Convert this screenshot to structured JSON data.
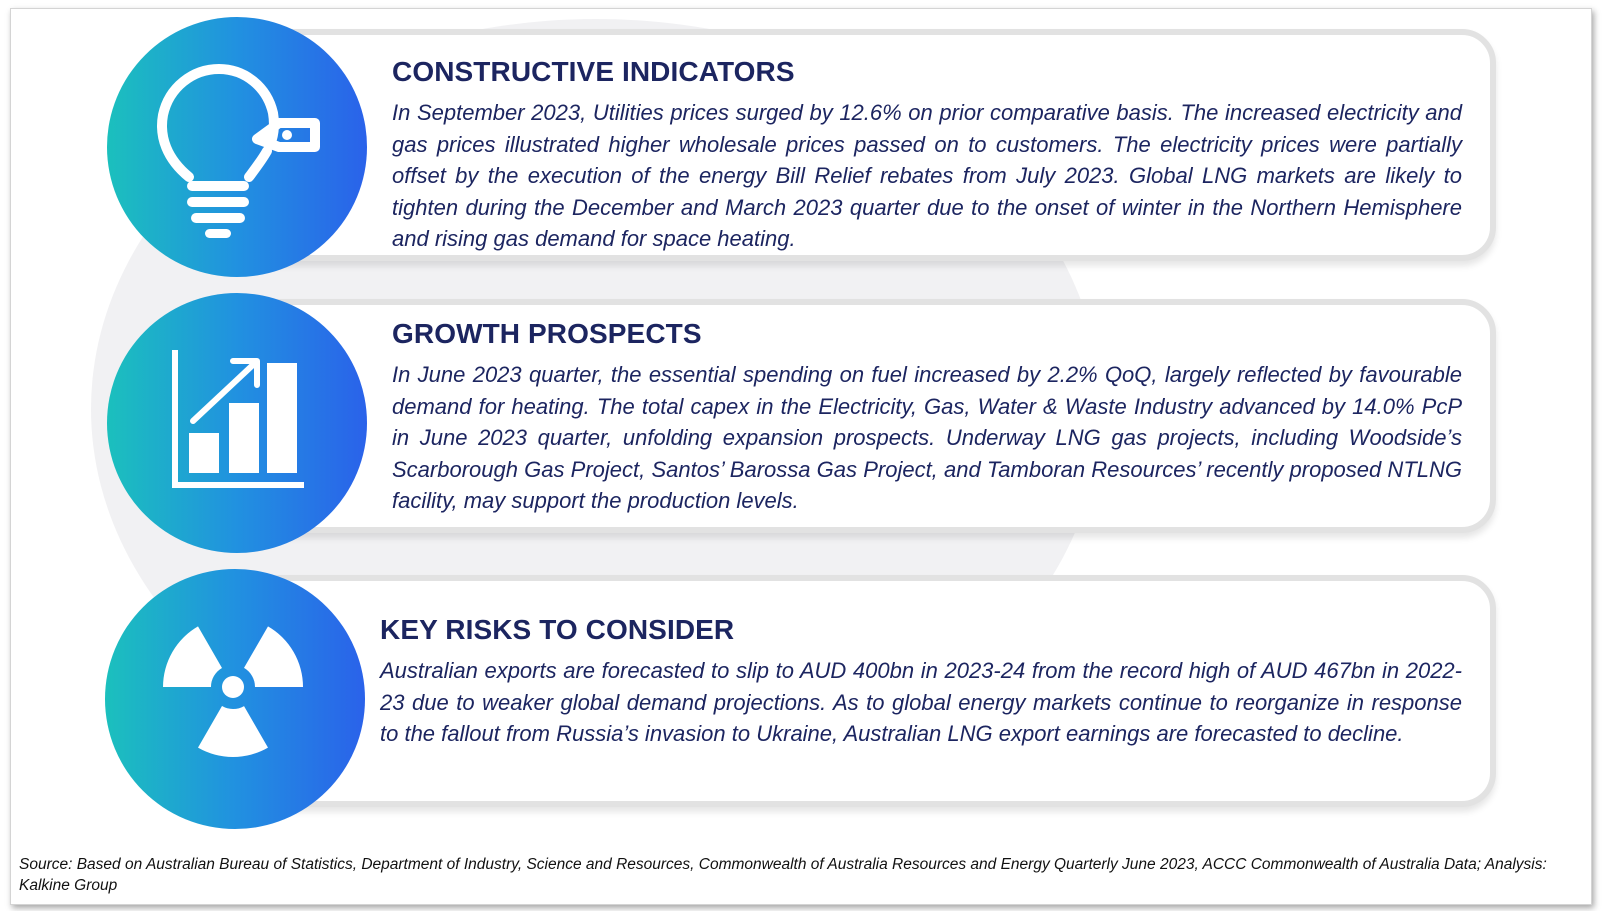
{
  "sections": [
    {
      "title": "CONSTRUCTIVE INDICATORS",
      "body": "In September 2023, Utilities prices surged by 12.6% on prior comparative basis. The increased electricity and gas prices illustrated higher wholesale prices passed on to customers. The electricity prices were partially offset by the execution of the energy Bill Relief rebates from July 2023. Global LNG markets are likely to tighten during the December and March 2023 quarter due to the onset of winter in the Northern Hemisphere and rising gas demand for space heating.",
      "icon": "lightbulb-price-tag-icon"
    },
    {
      "title": "GROWTH PROSPECTS",
      "body": "In June 2023 quarter, the essential spending on fuel increased by 2.2% QoQ, largely reflected by favourable demand for heating. The total capex in the Electricity, Gas, Water & Waste Industry advanced by 14.0% PcP in June 2023 quarter, unfolding expansion prospects. Underway LNG gas projects, including Woodside’s Scarborough Gas Project, Santos’ Barossa Gas Project, and Tamboran Resources’ recently proposed NTLNG facility, may support the production levels.",
      "icon": "growth-bar-chart-icon"
    },
    {
      "title": "KEY RISKS TO CONSIDER",
      "body": "Australian exports are forecasted to slip to AUD 400bn in 2023-24 from the record high of AUD 467bn in 2022-23 due to weaker global demand projections. As to global energy markets continue to reorganize in response to the fallout from Russia’s invasion to Ukraine, Australian LNG export earnings are forecasted to decline.",
      "icon": "radiation-hazard-icon"
    }
  ],
  "source": "Source: Based on Australian Bureau of Statistics, Department of Industry, Science and Resources, Commonwealth of Australia Resources and Energy Quarterly June 2023, ACCC Commonwealth of Australia Data; Analysis: Kalkine Group",
  "colors": {
    "title": "#1c2560",
    "gradient_start": "#1bc0bd",
    "gradient_end": "#2a62ea",
    "card_border": "#e2e2e2"
  }
}
